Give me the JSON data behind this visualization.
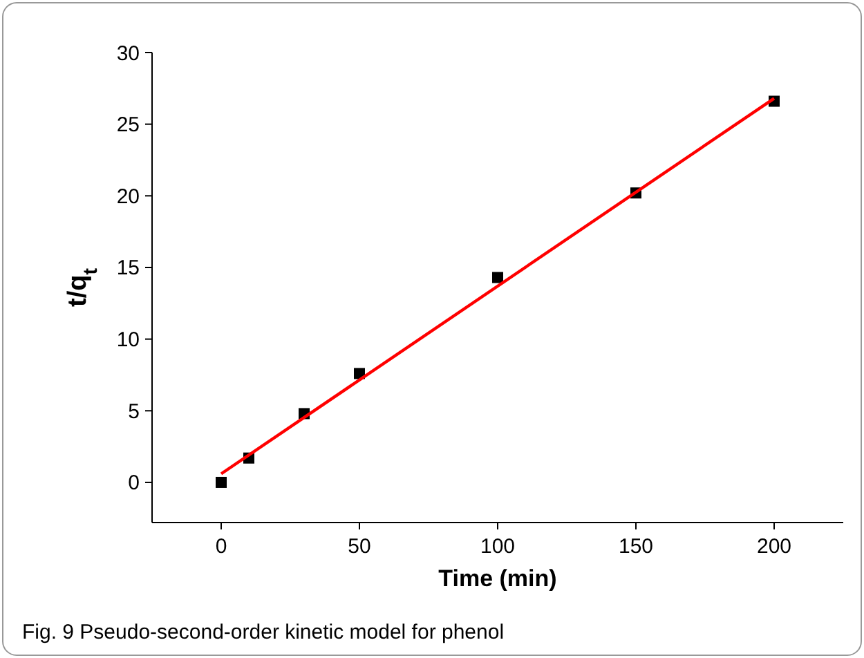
{
  "chart_data": {
    "type": "scatter",
    "xlabel": "Time (min)",
    "ylabel": "t/q$_{t}$",
    "xlim": [
      -25,
      225
    ],
    "ylim": [
      -2.8,
      30
    ],
    "xticks": [
      0,
      50,
      100,
      150,
      200
    ],
    "yticks": [
      0,
      5,
      10,
      15,
      20,
      25,
      30
    ],
    "grid": false,
    "annotations": [
      "Fig. 9  Pseudo-second-order kinetic model for phenol"
    ],
    "series": [
      {
        "color": "#000000",
        "marker": "square",
        "x": [
          0,
          10,
          30,
          50,
          100,
          150,
          200
        ],
        "values": [
          0,
          1.7,
          4.8,
          7.6,
          14.3,
          20.2,
          26.6
        ]
      },
      {
        "type": "line",
        "color": "#ff0000",
        "marker": "none",
        "line_style": "solid",
        "x": [
          0,
          200
        ],
        "values": [
          0.6,
          26.8
        ]
      }
    ]
  }
}
